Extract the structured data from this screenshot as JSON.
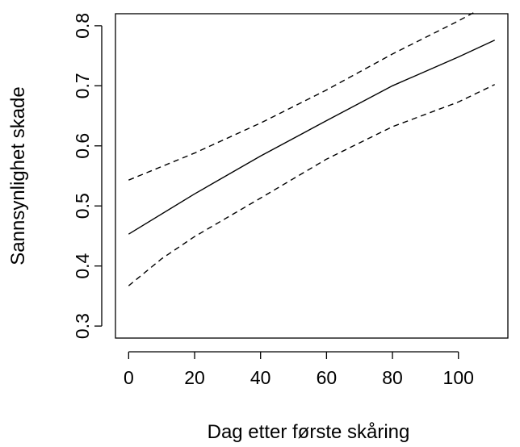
{
  "chart_data": {
    "type": "line",
    "xlabel": "Dag etter første skåring",
    "ylabel": "Sannsynlighet skade",
    "xlim": [
      -4,
      115
    ],
    "ylim": [
      0.28,
      0.82
    ],
    "x_ticks": [
      0,
      20,
      40,
      60,
      80,
      100
    ],
    "y_ticks": [
      0.3,
      0.4,
      0.5,
      0.6,
      0.7,
      0.8
    ],
    "y_tick_labels": [
      "0.3",
      "0.4",
      "0.5",
      "0.6",
      "0.7",
      "0.8"
    ],
    "grid": false,
    "legend": "none",
    "series": [
      {
        "style": "solid",
        "x": [
          0,
          20,
          40,
          60,
          80,
          100,
          111
        ],
        "y": [
          0.453,
          0.52,
          0.583,
          0.642,
          0.7,
          0.748,
          0.776
        ]
      },
      {
        "style": "dashed",
        "x": [
          0,
          20,
          40,
          60,
          80,
          100,
          105
        ],
        "y": [
          0.543,
          0.588,
          0.638,
          0.693,
          0.753,
          0.808,
          0.823
        ]
      },
      {
        "style": "dashed",
        "x": [
          0,
          10,
          20,
          40,
          60,
          80,
          100,
          111
        ],
        "y": [
          0.367,
          0.412,
          0.449,
          0.513,
          0.578,
          0.632,
          0.673,
          0.702
        ]
      }
    ]
  }
}
